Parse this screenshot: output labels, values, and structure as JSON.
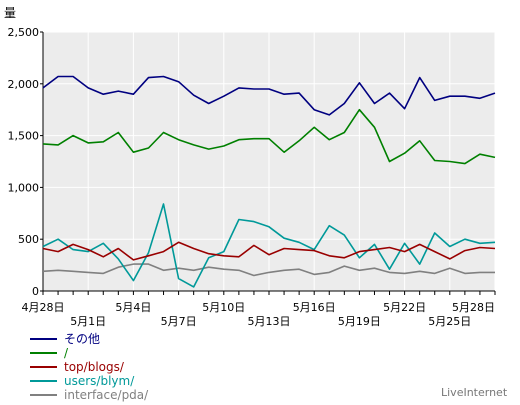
{
  "chart_data": {
    "type": "line",
    "ylabel": "量",
    "ylim": [
      0,
      2500
    ],
    "yticks": [
      "0",
      "500",
      "1,000",
      "1,500",
      "2,000",
      "2,500"
    ],
    "ytick_values": [
      0,
      500,
      1000,
      1500,
      2000,
      2500
    ],
    "grid": true,
    "legend_position": "bottom-left",
    "x": [
      "4月28日",
      "4月29日",
      "4月30日",
      "5月1日",
      "5月2日",
      "5月3日",
      "5月4日",
      "5月5日",
      "5月6日",
      "5月7日",
      "5月8日",
      "5月9日",
      "5月10日",
      "5月11日",
      "5月12日",
      "5月13日",
      "5月14日",
      "5月15日",
      "5月16日",
      "5月17日",
      "5月18日",
      "5月19日",
      "5月20日",
      "5月21日",
      "5月22日",
      "5月23日",
      "5月24日",
      "5月25日",
      "5月26日",
      "5月27日",
      "5月28日"
    ],
    "xtick_labels_row1": [
      {
        "index": 0,
        "label": "4月28日"
      },
      {
        "index": 6,
        "label": "5月4日"
      },
      {
        "index": 12,
        "label": "5月10日"
      },
      {
        "index": 18,
        "label": "5月16日"
      },
      {
        "index": 24,
        "label": "5月22日"
      },
      {
        "index": 30,
        "label": "5月28日"
      }
    ],
    "xtick_labels_row2": [
      {
        "index": 3,
        "label": "5月1日"
      },
      {
        "index": 9,
        "label": "5月7日"
      },
      {
        "index": 15,
        "label": "5月13日"
      },
      {
        "index": 21,
        "label": "5月19日"
      },
      {
        "index": 27,
        "label": "5月25日"
      }
    ],
    "series": [
      {
        "name": "その他",
        "color": "#000080",
        "values": [
          1960,
          2070,
          2070,
          1960,
          1900,
          1930,
          1900,
          2060,
          2070,
          2020,
          1890,
          1810,
          1880,
          1960,
          1950,
          1950,
          1900,
          1910,
          1750,
          1700,
          1810,
          2010,
          1810,
          1910,
          1760,
          2060,
          1840,
          1880,
          1880,
          1860,
          1910
        ]
      },
      {
        "name": "/",
        "color": "#008000",
        "values": [
          1420,
          1410,
          1500,
          1430,
          1440,
          1530,
          1340,
          1380,
          1530,
          1460,
          1410,
          1370,
          1400,
          1460,
          1470,
          1470,
          1340,
          1450,
          1580,
          1460,
          1530,
          1750,
          1580,
          1250,
          1330,
          1450,
          1260,
          1250,
          1230,
          1320,
          1290
        ]
      },
      {
        "name": "top/blogs/",
        "color": "#990000",
        "values": [
          410,
          380,
          450,
          400,
          330,
          410,
          300,
          340,
          380,
          470,
          410,
          360,
          340,
          330,
          440,
          350,
          410,
          400,
          390,
          340,
          320,
          380,
          400,
          420,
          380,
          450,
          380,
          310,
          390,
          420,
          410
        ]
      },
      {
        "name": "users/blym/",
        "color": "#009999",
        "values": [
          430,
          500,
          400,
          380,
          460,
          310,
          100,
          370,
          840,
          120,
          40,
          320,
          380,
          690,
          670,
          620,
          510,
          470,
          400,
          630,
          540,
          320,
          450,
          210,
          460,
          260,
          560,
          430,
          500,
          460,
          470
        ]
      },
      {
        "name": "interface/pda/",
        "color": "#808080",
        "values": [
          190,
          200,
          190,
          180,
          170,
          230,
          260,
          260,
          200,
          220,
          200,
          230,
          210,
          200,
          150,
          180,
          200,
          210,
          160,
          180,
          240,
          200,
          220,
          180,
          170,
          190,
          170,
          220,
          170,
          180,
          180
        ]
      }
    ]
  },
  "watermark": "LiveInternet"
}
